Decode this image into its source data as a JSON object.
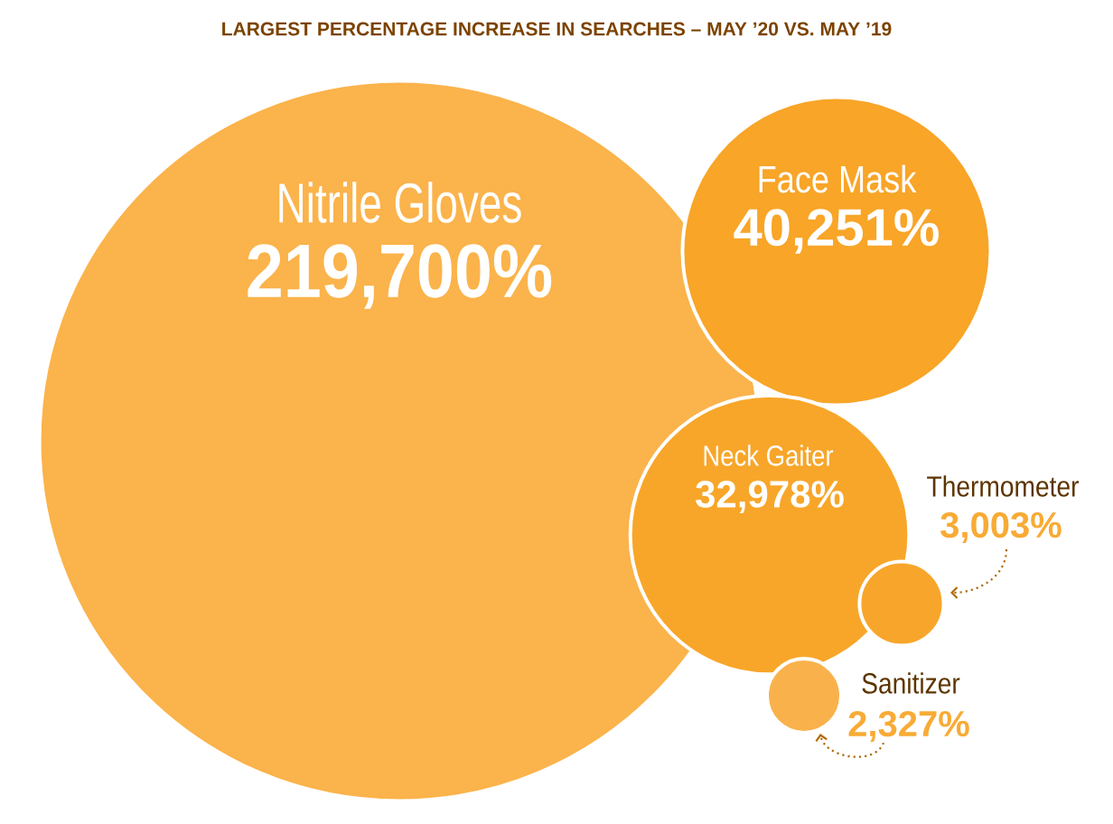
{
  "chart_data": {
    "type": "other",
    "title": "LARGEST PERCENTAGE INCREASE IN SEARCHES – MAY ’20 VS. MAY ’19",
    "categories": [
      "Nitrile Gloves",
      "Face Mask",
      "Neck Gaiter",
      "Thermometer",
      "Sanitizer"
    ],
    "values": [
      219700,
      40251,
      32978,
      3003,
      2327
    ],
    "value_labels": [
      "219,700%",
      "40,251%",
      "32,978%",
      "3,003%",
      "2,327%"
    ],
    "colors": [
      "#fbb34b",
      "#f8a528",
      "#f8a629",
      "#f8a62b",
      "#f9b24b"
    ]
  }
}
